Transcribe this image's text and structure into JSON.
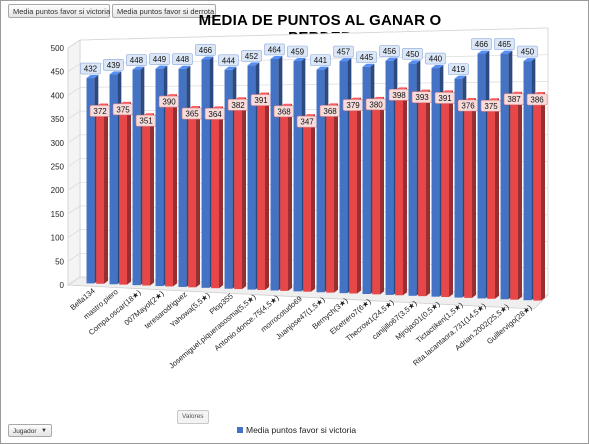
{
  "field_buttons": {
    "victoria": "Media puntos favor si victoria",
    "derrota": "Media puntos favor si derrota"
  },
  "valores_label": "Valores",
  "jugador_label": "Jugador",
  "legend_label": "Media puntos favor si victoria",
  "colors": {
    "blue": "#4472c4",
    "red": "#e8474a"
  },
  "chart_data": {
    "type": "bar",
    "title": "MEDIA DE PUNTOS  AL GANAR O PERDER",
    "ylim": [
      0,
      500
    ],
    "yticks": [
      0,
      50,
      100,
      150,
      200,
      250,
      300,
      350,
      400,
      450,
      500
    ],
    "grid": true,
    "legend": "bottom",
    "categories": [
      "Bella134",
      "mastro.piero",
      "Compa.oscar(18★)",
      "007Mayol(2★)",
      "teresarodriguez",
      "Yahowa(5,5★)",
      "Plop355",
      "Josemiguel.piquerasosma(5,5★)",
      "Antonio.donce.75(4,5★)",
      "morrocotudo69",
      "Juanjose47(1,5★)",
      "Bernych(3★)",
      "Elcetrero7(6★)",
      "Thecrow1(24,5★)",
      "canijillo67(3,5★)",
      "Mjrojas01(0,5★)",
      "Tictactiken(1,5★)",
      "Rita.lacantaora.731(14,5★)",
      "Adrian.2002(25,5★)",
      "Guillervigo(28★)"
    ],
    "series": [
      {
        "name": "Media puntos favor si victoria",
        "values": [
          432,
          439,
          448,
          449,
          448,
          466,
          444,
          452,
          464,
          459,
          441,
          457,
          445,
          456,
          450,
          440,
          419,
          466,
          465,
          450
        ]
      },
      {
        "name": "Media puntos favor si derrota",
        "values": [
          372,
          375,
          351,
          390,
          365,
          364,
          382,
          391,
          368,
          347,
          368,
          379,
          380,
          398,
          393,
          391,
          376,
          375,
          387,
          386
        ]
      }
    ]
  }
}
